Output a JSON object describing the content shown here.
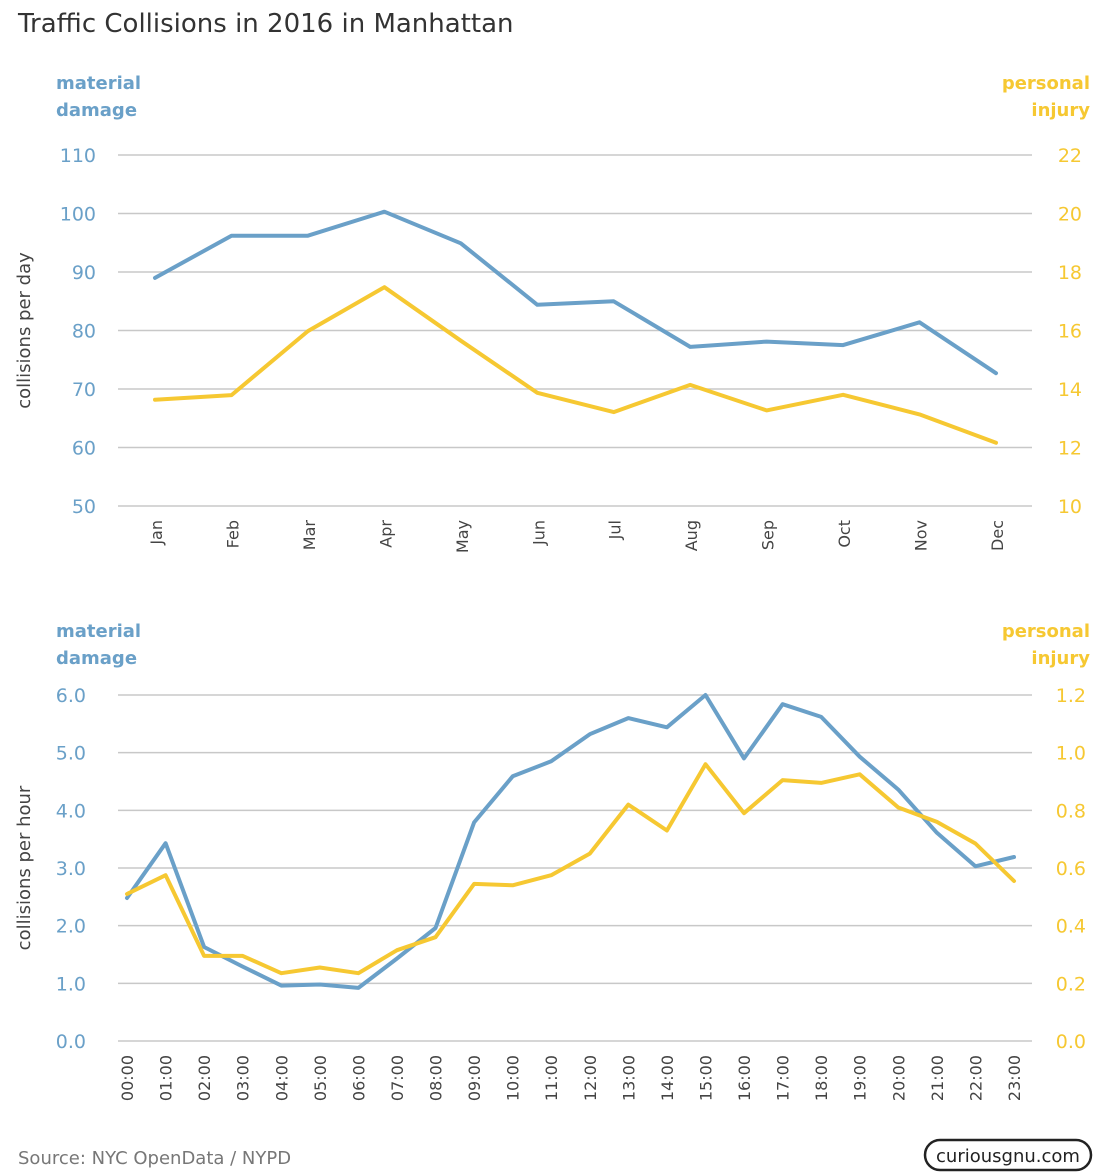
{
  "title": "Traffic Collisions in 2016 in Manhattan",
  "source": "Source: NYC OpenData / NYPD",
  "brand": "curiousgnu.com",
  "colors": {
    "material": "#6aa0c8",
    "injury": "#f6c832",
    "grid": "#c8c8c8",
    "text": "#444444"
  },
  "chart_data": [
    {
      "type": "line",
      "ylabel": "collisions per day",
      "left_axis_label": [
        "material",
        "damage"
      ],
      "right_axis_label": [
        "personal",
        "injury"
      ],
      "left_ylim": [
        50,
        110
      ],
      "left_ticks": [
        "50",
        "60",
        "70",
        "80",
        "90",
        "100",
        "110"
      ],
      "right_ylim": [
        10,
        22
      ],
      "right_ticks": [
        "10",
        "12",
        "14",
        "16",
        "18",
        "20",
        "22"
      ],
      "grid": true,
      "categories": [
        "Jan",
        "Feb",
        "Mar",
        "Apr",
        "May",
        "Jun",
        "Jul",
        "Aug",
        "Sep",
        "Oct",
        "Nov",
        "Dec"
      ],
      "series": [
        {
          "name": "material damage",
          "axis": "left",
          "values": [
            89.0,
            96.2,
            96.2,
            100.3,
            94.9,
            84.4,
            85.0,
            77.2,
            78.1,
            77.5,
            81.4,
            72.7
          ]
        },
        {
          "name": "personal injury",
          "axis": "right",
          "values": [
            13.63,
            13.79,
            15.98,
            17.48,
            15.65,
            13.87,
            13.21,
            14.14,
            13.27,
            13.8,
            13.13,
            12.16
          ]
        }
      ]
    },
    {
      "type": "line",
      "ylabel": "collisions per hour",
      "left_axis_label": [
        "material",
        "damage"
      ],
      "right_axis_label": [
        "personal",
        "injury"
      ],
      "left_ylim": [
        0,
        6
      ],
      "left_ticks": [
        "0.0",
        "1.0",
        "2.0",
        "3.0",
        "4.0",
        "5.0",
        "6.0"
      ],
      "right_ylim": [
        0,
        1.2
      ],
      "right_ticks": [
        "0.0",
        "0.2",
        "0.4",
        "0.6",
        "0.8",
        "1.0",
        "1.2"
      ],
      "grid": true,
      "categories": [
        "00:00",
        "01:00",
        "02:00",
        "03:00",
        "04:00",
        "05:00",
        "06:00",
        "07:00",
        "08:00",
        "09:00",
        "10:00",
        "11:00",
        "12:00",
        "13:00",
        "14:00",
        "15:00",
        "16:00",
        "17:00",
        "18:00",
        "19:00",
        "20:00",
        "21:00",
        "22:00",
        "23:00"
      ],
      "series": [
        {
          "name": "material damage",
          "axis": "left",
          "values": [
            2.48,
            3.43,
            1.63,
            1.29,
            0.96,
            0.98,
            0.92,
            1.43,
            1.96,
            3.79,
            4.59,
            4.85,
            5.32,
            5.6,
            5.44,
            6.0,
            4.9,
            5.84,
            5.62,
            4.93,
            4.36,
            3.61,
            3.03,
            3.19
          ]
        },
        {
          "name": "personal injury",
          "axis": "right",
          "values": [
            0.51,
            0.575,
            0.295,
            0.295,
            0.235,
            0.255,
            0.235,
            0.315,
            0.36,
            0.545,
            0.54,
            0.575,
            0.65,
            0.82,
            0.73,
            0.96,
            0.79,
            0.905,
            0.895,
            0.925,
            0.81,
            0.76,
            0.685,
            0.555
          ]
        }
      ]
    }
  ]
}
